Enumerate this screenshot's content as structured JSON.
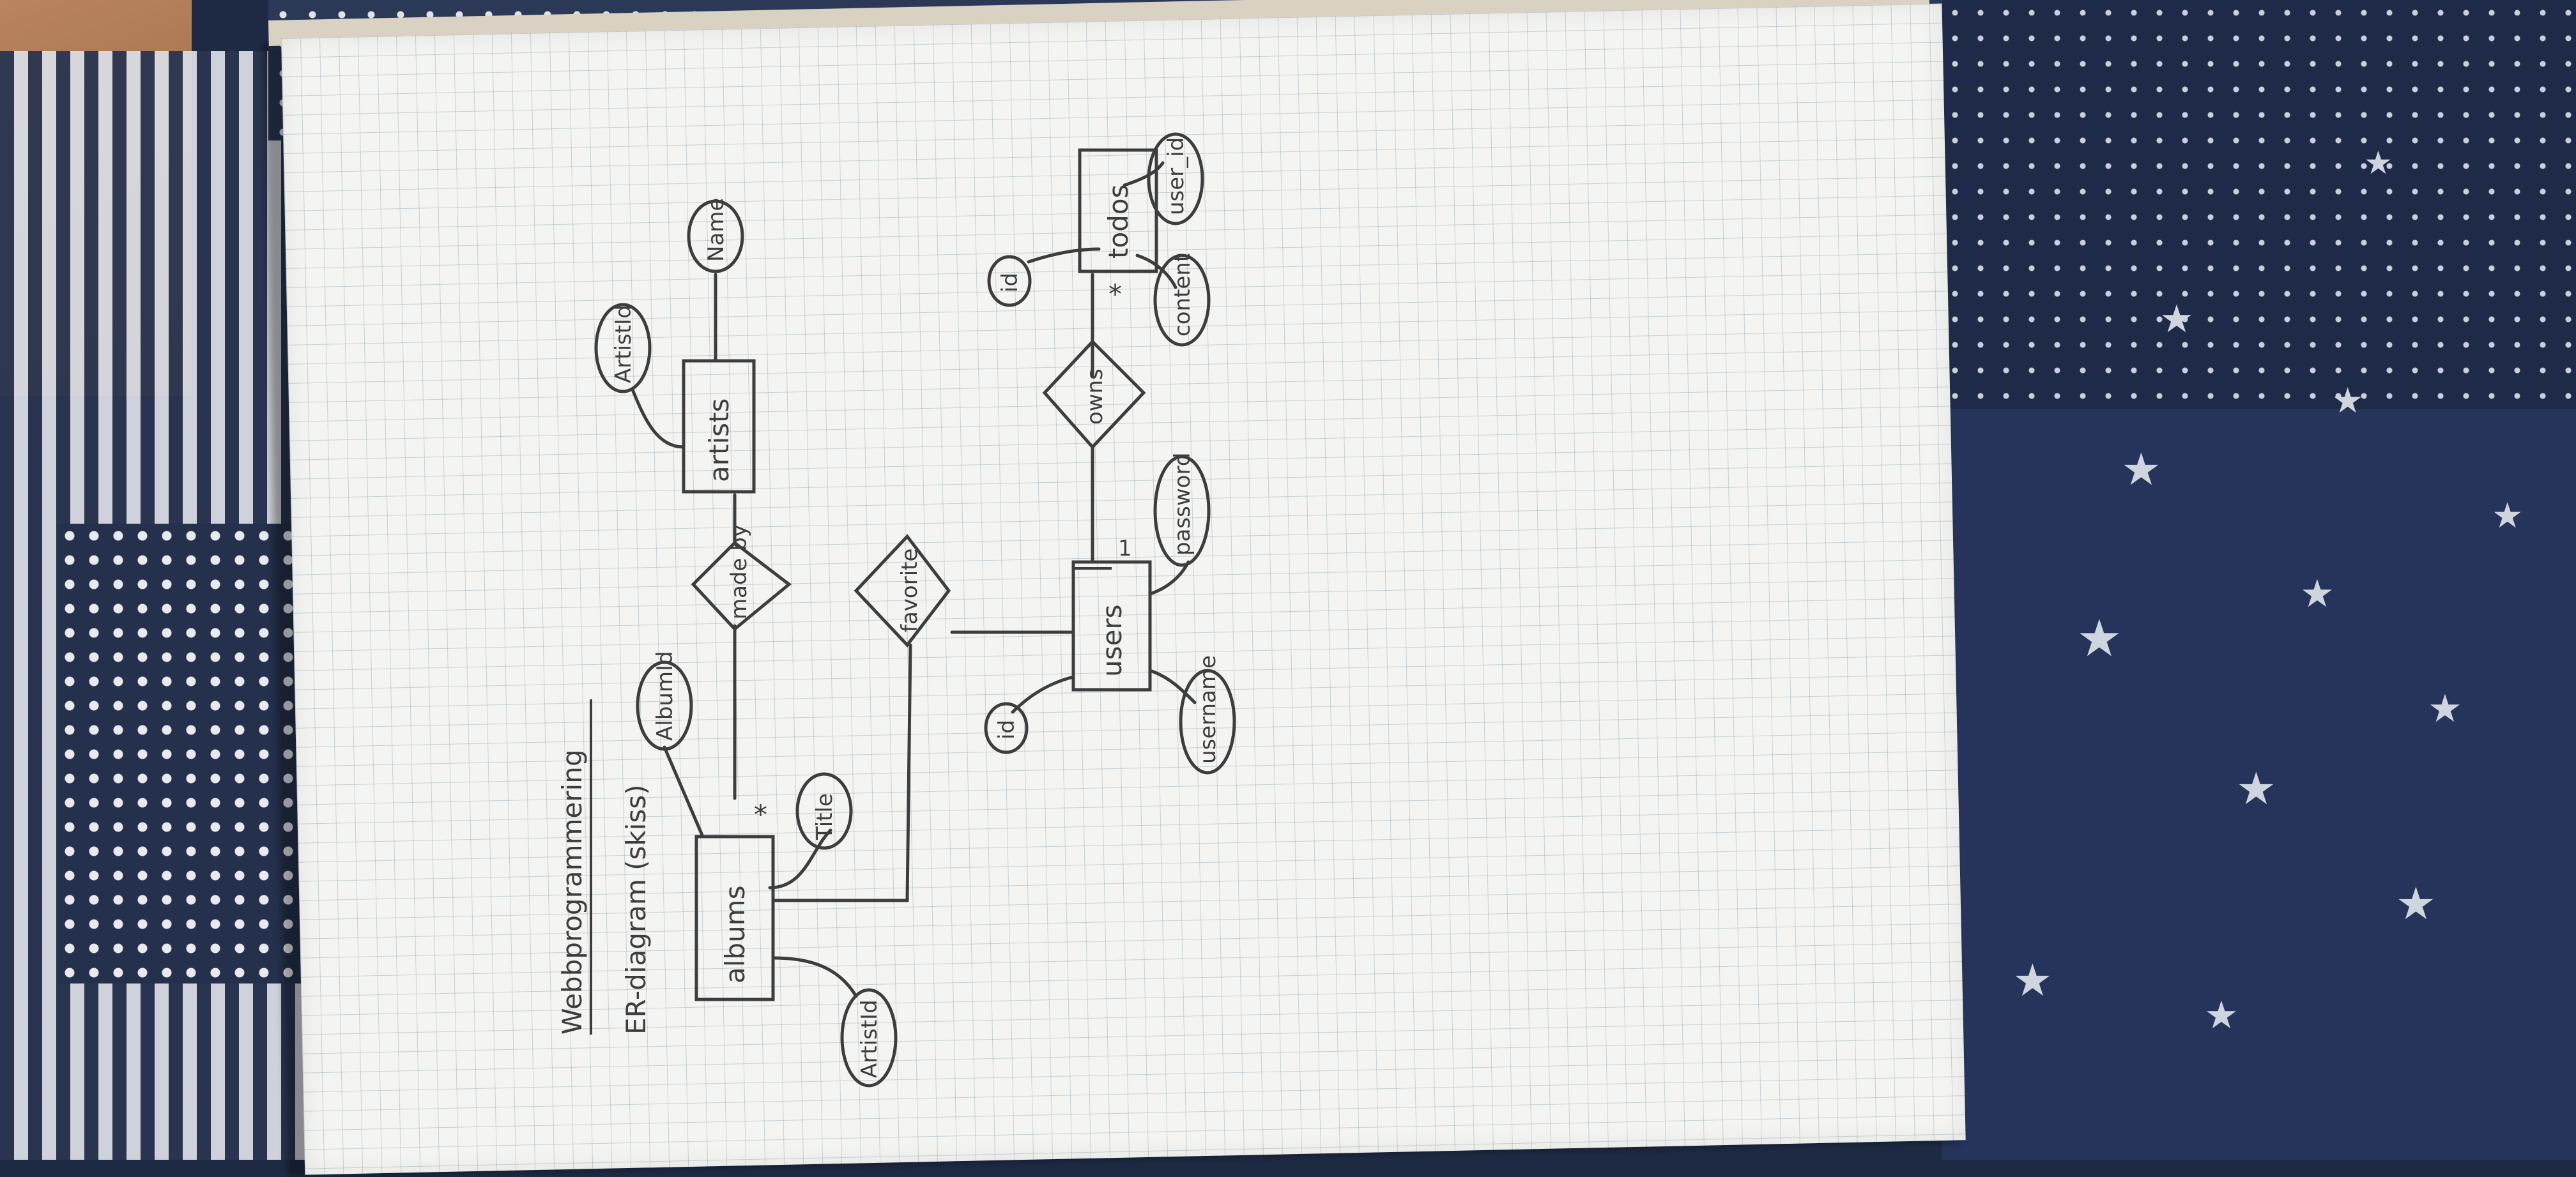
{
  "header": {
    "title": "Webbprogrammering",
    "subtitle": "ER-diagram (skiss)"
  },
  "entities": {
    "albums": "albums",
    "artists": "artists",
    "users": "users",
    "todos": "todos"
  },
  "attributes": {
    "album_id": "AlbumId",
    "title": "Title",
    "album_artist_id": "ArtistId",
    "artist_id": "ArtistId",
    "name": "Name",
    "user_id": "id",
    "username": "username",
    "password": "password",
    "todo_id": "id",
    "content": "content",
    "todo_user_id": "user_id"
  },
  "relationships": {
    "made_by": "made by",
    "favorite": "favorite",
    "owns": "owns"
  },
  "cardinality": {
    "many": "*",
    "one": "1"
  },
  "colors": {
    "ink": "#3d3d3d",
    "paper": "#f4f5f3",
    "grid": "#8c9aa0",
    "quilt": "#26335a"
  }
}
